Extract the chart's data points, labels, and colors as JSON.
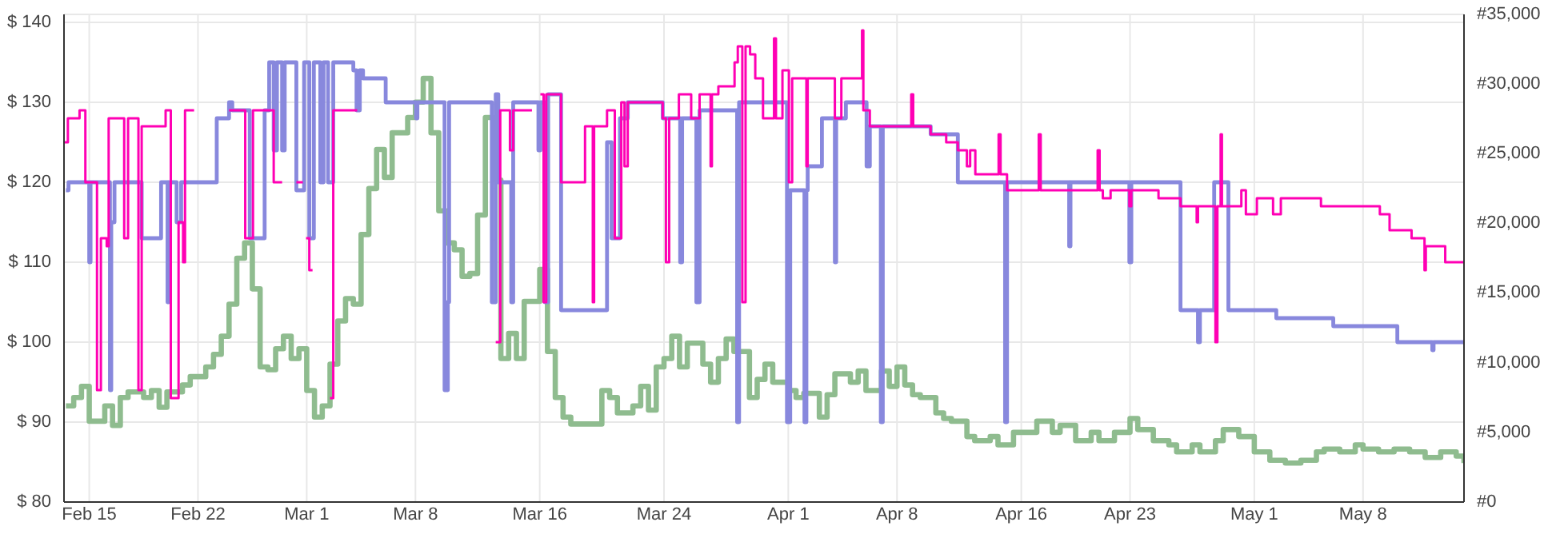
{
  "chart_data": {
    "type": "step",
    "grid": true,
    "xlim": [
      "--02-13T09:00",
      "--05-14T12:00"
    ],
    "xticks": [
      {
        "value": "--02-15",
        "label": "Feb 15"
      },
      {
        "value": "--02-22",
        "label": "Feb 22"
      },
      {
        "value": "--03-01",
        "label": "Mar 1"
      },
      {
        "value": "--03-08",
        "label": "Mar 8"
      },
      {
        "value": "--03-16",
        "label": "Mar 16"
      },
      {
        "value": "--03-24",
        "label": "Mar 24"
      },
      {
        "value": "--04-01",
        "label": "Apr 1"
      },
      {
        "value": "--04-08",
        "label": "Apr 8"
      },
      {
        "value": "--04-16",
        "label": "Apr 16"
      },
      {
        "value": "--04-23",
        "label": "Apr 23"
      },
      {
        "value": "--05-01",
        "label": "May 1"
      },
      {
        "value": "--05-08",
        "label": "May 8"
      }
    ],
    "ylim": [
      80,
      141
    ],
    "yticks": [
      {
        "value": 80,
        "label": "$ 80"
      },
      {
        "value": 90,
        "label": "$ 90"
      },
      {
        "value": 100,
        "label": "$ 100"
      },
      {
        "value": 110,
        "label": "$ 110"
      },
      {
        "value": 120,
        "label": "$ 120"
      },
      {
        "value": 130,
        "label": "$ 130"
      },
      {
        "value": 140,
        "label": "$ 140"
      }
    ],
    "y2lim": [
      0,
      35000
    ],
    "y2ticks": [
      {
        "value": 0,
        "label": "#0"
      },
      {
        "value": 5000,
        "label": "#5,000"
      },
      {
        "value": 10000,
        "label": "#10,000"
      },
      {
        "value": 15000,
        "label": "#15,000"
      },
      {
        "value": 20000,
        "label": "#20,000"
      },
      {
        "value": 25000,
        "label": "#25,000"
      },
      {
        "value": 30000,
        "label": "#30,000"
      },
      {
        "value": 35000,
        "label": "#35,000"
      }
    ],
    "series": [
      {
        "color": "#8fbc8f",
        "axis": "y2",
        "x": [
          "--02-13T12:00",
          "--02-14",
          "--02-14T12:00",
          "--02-15",
          "--02-15T12:00",
          "--02-16",
          "--02-16T12:00",
          "--02-17",
          "--02-17T12:00",
          "--02-18T12:00",
          "--02-19",
          "--02-19T12:00",
          "--02-20",
          "--02-21",
          "--02-21T12:00",
          "--02-22T12:00",
          "--02-23",
          "--02-23T12:00",
          "--02-24",
          "--02-24T12:00",
          "--02-25",
          "--02-25T12:00",
          "--02-26",
          "--02-26T12:00",
          "--02-27",
          "--02-27T12:00",
          "--02-28",
          "--02-28T12:00",
          "--03-01",
          "--03-01T12:00",
          "--03-02",
          "--03-02T12:00",
          "--03-03",
          "--03-03T12:00",
          "--03-04",
          "--03-04T12:00",
          "--03-05",
          "--03-05T12:00",
          "--03-06",
          "--03-06T12:00",
          "--03-07T12:00",
          "--03-08",
          "--03-08T12:00",
          "--03-09",
          "--03-09T12:00",
          "--03-10",
          "--03-10T12:00",
          "--03-11",
          "--03-11T12:00",
          "--03-12",
          "--03-12T12:00",
          "--03-13",
          "--03-13T12:00",
          "--03-14",
          "--03-14T12:00",
          "--03-15",
          "--03-16",
          "--03-16T12:00",
          "--03-17",
          "--03-17T12:00",
          "--03-18",
          "--03-19",
          "--03-20",
          "--03-20T12:00",
          "--03-21",
          "--03-22",
          "--03-22T12:00",
          "--03-23",
          "--03-23T12:00",
          "--03-24",
          "--03-24T12:00",
          "--03-25",
          "--03-25T12:00",
          "--03-26T12:00",
          "--03-27",
          "--03-27T12:00",
          "--03-28",
          "--03-28T12:00",
          "--03-29T12:00",
          "--03-30",
          "--03-30T12:00",
          "--03-31",
          "--04-01",
          "--04-01T12:00",
          "--04-02",
          "--04-03",
          "--04-03T12:00",
          "--04-04",
          "--04-05",
          "--04-05T12:00",
          "--04-06",
          "--04-07",
          "--04-07T12:00",
          "--04-08",
          "--04-08T12:00",
          "--04-09",
          "--04-09T12:00",
          "--04-10T12:00",
          "--04-11",
          "--04-11T12:00",
          "--04-12T12:00",
          "--04-13",
          "--04-14",
          "--04-14T12:00",
          "--04-15T12:00",
          "--04-16T12:00",
          "--04-17",
          "--04-18",
          "--04-18T12:00",
          "--04-19T12:00",
          "--04-20T12:00",
          "--04-21",
          "--04-22",
          "--04-23",
          "--04-23T12:00",
          "--04-24T12:00",
          "--04-25T12:00",
          "--04-26",
          "--04-27",
          "--04-27T12:00",
          "--04-28T12:00",
          "--04-29",
          "--04-30",
          "--05-01",
          "--05-02",
          "--05-03",
          "--05-04",
          "--05-05",
          "--05-05T12:00",
          "--05-06T12:00",
          "--05-07T12:00",
          "--05-08",
          "--05-09",
          "--05-10",
          "--05-11",
          "--05-12",
          "--05-13",
          "--05-14",
          "--05-14T12:00"
        ],
        "values": [
          6900,
          7500,
          8300,
          5800,
          5800,
          6900,
          5500,
          7500,
          7900,
          7500,
          8000,
          6800,
          7900,
          8400,
          9000,
          9700,
          10600,
          11900,
          14200,
          17500,
          18600,
          15300,
          9700,
          9500,
          11000,
          11900,
          10300,
          11000,
          8000,
          6100,
          6900,
          9900,
          13000,
          14600,
          14200,
          19200,
          22500,
          25300,
          23300,
          26500,
          27600,
          28700,
          30400,
          26500,
          20900,
          18600,
          18100,
          16200,
          16400,
          20600,
          27600,
          23100,
          10300,
          12100,
          10300,
          14400,
          16700,
          10800,
          7500,
          6100,
          5600,
          5600,
          8000,
          7500,
          6400,
          6900,
          8300,
          6600,
          9700,
          10300,
          11900,
          9700,
          11400,
          9900,
          8600,
          10300,
          11700,
          10800,
          7500,
          8800,
          9900,
          8600,
          8000,
          7500,
          7800,
          6100,
          7700,
          9200,
          8600,
          9400,
          8000,
          9400,
          8300,
          9700,
          8400,
          7700,
          7500,
          6400,
          6000,
          5800,
          4700,
          4400,
          4700,
          4100,
          5000,
          5000,
          5800,
          5000,
          5500,
          4400,
          5000,
          4400,
          5000,
          6000,
          5200,
          4400,
          4100,
          3600,
          4100,
          3600,
          4400,
          5200,
          4700,
          3600,
          3000,
          2800,
          3000,
          3600,
          3800,
          3600,
          4100,
          3800,
          3600,
          3800,
          3600,
          3200,
          3600,
          3300,
          2800
        ]
      },
      {
        "color": "#8888dd",
        "x": [
          "--02-13T12:00",
          "--02-13T16:00",
          "--02-15",
          "--02-15T02:00",
          "--02-16T08:00",
          "--02-16T10:00",
          "--02-16T15:00",
          "--02-18T09:00",
          "--02-19T15:00",
          "--02-20T01:00",
          "--02-20T03:00",
          "--02-20T15:00",
          "--02-20T22:00",
          "--02-23T05:00",
          "--02-24",
          "--02-24T05:00",
          "--02-25T08:00",
          "--02-26T07:00",
          "--02-26T14:00",
          "--02-26T21:00",
          "--02-27T02:00",
          "--02-27T10:00",
          "--02-27T14:00",
          "--02-28T08:00",
          "--02-28T20:00",
          "--03-01T04:00",
          "--03-01T11:00",
          "--03-01T21:00",
          "--03-02T02:00",
          "--03-02T09:00",
          "--03-02T17:00",
          "--03-04",
          "--03-04T05:00",
          "--03-04T10:00",
          "--03-04T15:00",
          "--03-06T02:00",
          "--03-08T01:00",
          "--03-08T03:00",
          "--03-09T21:00",
          "--03-10T02:00",
          "--03-10T04:00",
          "--03-12T22:00",
          "--03-13T04:00",
          "--03-13T08:00",
          "--03-14T04:00",
          "--03-14T07:00",
          "--03-15T22:00",
          "--03-16T01:00",
          "--03-16T08:00",
          "--03-16T13:00",
          "--03-17T09:00",
          "--03-20T08:00",
          "--03-20T15:00",
          "--03-21T04:00",
          "--03-21T16:00",
          "--03-23T22:00",
          "--03-25T01:00",
          "--03-25T04:00",
          "--03-26T02:00",
          "--03-26T07:00",
          "--03-28T17:00",
          "--03-28T20:00",
          "--03-31T22:00",
          "--04-01T03:00",
          "--04-02T01:00",
          "--04-02T04:00",
          "--04-02T06:00",
          "--04-03T04:00",
          "--04-04",
          "--04-04T02:00",
          "--04-04T17:00",
          "--04-06T01:00",
          "--04-06T06:00",
          "--04-06T23:00",
          "--04-07T02:00",
          "--04-10T04:00",
          "--04-11T22:00",
          "--04-14T23:00",
          "--04-15T02:00",
          "--04-19T02:00",
          "--04-19T04:00",
          "--04-22T23:00",
          "--04-23T02:00",
          "--04-26T06:00",
          "--04-27T09:00",
          "--04-27T12:00",
          "--04-28T10:00",
          "--04-29T08:00",
          "--05-02T10:00",
          "--05-06T02:00",
          "--05-10T05:00",
          "--05-12T11:00",
          "--05-12T13:00",
          "--05-14T12:00"
        ],
        "values": [
          119,
          120,
          110,
          120,
          94,
          115,
          120,
          113,
          120,
          105,
          120,
          115,
          120,
          128,
          130,
          129,
          113,
          129,
          135,
          124,
          135,
          124,
          135,
          119,
          135,
          113,
          135,
          120,
          135,
          120,
          135,
          134,
          129,
          134,
          133,
          130,
          128,
          130,
          94,
          105,
          130,
          105,
          131,
          120,
          105,
          130,
          124,
          130,
          105,
          131,
          104,
          125,
          113,
          128,
          130,
          128,
          110,
          128,
          105,
          129,
          90,
          130,
          90,
          119,
          90,
          119,
          122,
          128,
          110,
          128,
          130,
          122,
          127,
          90,
          127,
          126,
          120,
          90,
          120,
          112,
          120,
          110,
          120,
          104,
          100,
          104,
          120,
          104,
          103,
          102,
          100,
          99,
          100,
          100
        ]
      },
      {
        "color": "#ff00b4",
        "x": [
          "--02-13T09:00",
          "--02-13T15:00",
          "--02-14T09:00",
          "--02-14T18:00",
          "--02-15T12:00",
          "--02-15T18:00",
          "--02-16T03:00",
          "--02-16T06:00",
          "--02-17T06:00",
          "--02-17T12:00",
          "--02-18T04:00",
          "--02-18T09:00",
          "--02-19T22:00",
          "--02-20T06:00",
          "--02-20T18:00",
          "--02-21T01:00",
          "--02-21T04:00",
          "--02-21T18:00",
          "--02-21T19:00",
          "--02-24",
          "--02-25T01:00",
          "--02-25T13:00",
          "--02-26T21:00",
          "--02-27T10:00",
          "--02-27T11:00",
          "--02-28T08:00",
          "--02-28T18:00",
          "--02-28T19:00",
          "--02-28T23:00",
          "--03-01T04:00",
          "--03-01T09:00",
          "--03-01T10:00",
          "--03-02T12:00",
          "--03-02T17:00",
          "--03-04T06:00",
          "--03-04T07:00",
          "--03-13T04:00",
          "--03-13T11:00",
          "--03-14T02:00",
          "--03-14T07:00",
          "--03-15T12:00",
          "--03-15T13:00",
          "--03-16T01:00",
          "--03-16T06:00",
          "--03-16T10:00",
          "--03-17T09:00",
          "--03-18T22:00",
          "--03-19T10:00",
          "--03-19T12:00",
          "--03-20T08:00",
          "--03-20T20:00",
          "--03-21T06:00",
          "--03-21T11:00",
          "--03-21T16:00",
          "--03-23T22:00",
          "--03-24T03:00",
          "--03-24T08:00",
          "--03-24T23:00",
          "--03-25T18:00",
          "--03-26T07:00",
          "--03-27",
          "--03-27T02:00",
          "--03-27T12:00",
          "--03-28T13:00",
          "--03-28T18:00",
          "--03-29T01:00",
          "--03-29T06:00",
          "--03-29T13:00",
          "--03-29T21:00",
          "--03-30T09:00",
          "--03-31T02:00",
          "--03-31T05:00",
          "--03-31T15:00",
          "--04-01T01:00",
          "--04-01T06:00",
          "--04-02T04:00",
          "--04-02T06:00",
          "--04-04",
          "--04-04T10:00",
          "--04-05T18:00",
          "--04-05T20:00",
          "--04-06T06:00",
          "--04-08T22:00",
          "--04-09T01:00",
          "--04-10T04:00",
          "--04-11T04:00",
          "--04-11T22:00",
          "--04-12T12:00",
          "--04-12T17:00",
          "--04-13T01:00",
          "--04-14T13:00",
          "--04-14T16:00",
          "--04-15T02:00",
          "--04-17T03:00",
          "--04-17T06:00",
          "--04-20T22:00",
          "--04-21T01:00",
          "--04-21T06:00",
          "--04-21T18:00",
          "--04-22T23:00",
          "--04-23T02:00",
          "--04-24T20:00",
          "--04-26T06:00",
          "--04-27T07:00",
          "--04-27T09:00",
          "--04-28T12:00",
          "--04-28T15:00",
          "--04-28T20:00",
          "--04-28T22:00",
          "--04-30T04:00",
          "--04-30T11:00",
          "--05-01T04:00",
          "--05-02T05:00",
          "--05-02T17:00",
          "--05-05T07:00",
          "--05-09T02:00",
          "--05-09T17:00",
          "--05-11T03:00",
          "--05-11T23:00",
          "--05-12T01:00",
          "--05-13T07:00",
          "--05-14T12:00"
        ],
        "values": [
          125,
          128,
          129,
          120,
          94,
          113,
          112,
          128,
          113,
          128,
          94,
          127,
          129,
          93,
          115,
          110,
          129,
          129,
          null,
          129,
          113,
          129,
          120,
          120,
          null,
          120,
          120,
          null,
          113,
          109,
          109,
          null,
          93,
          129,
          129,
          null,
          100,
          129,
          124,
          129,
          129,
          null,
          131,
          105,
          131,
          120,
          127,
          105,
          127,
          129,
          113,
          130,
          122,
          130,
          128,
          110,
          128,
          131,
          128,
          131,
          122,
          131,
          132,
          135,
          137,
          105,
          137,
          136,
          133,
          128,
          138,
          128,
          134,
          120,
          133,
          122,
          133,
          128,
          133,
          139,
          129,
          127,
          131,
          127,
          126,
          125,
          124,
          122,
          124,
          121,
          126,
          121,
          119,
          126,
          119,
          124,
          119,
          118,
          119,
          117,
          119,
          118,
          117,
          115,
          117,
          100,
          117,
          126,
          117,
          119,
          116,
          118,
          116,
          118,
          117,
          116,
          114,
          113,
          109,
          112,
          110,
          110
        ]
      }
    ]
  }
}
